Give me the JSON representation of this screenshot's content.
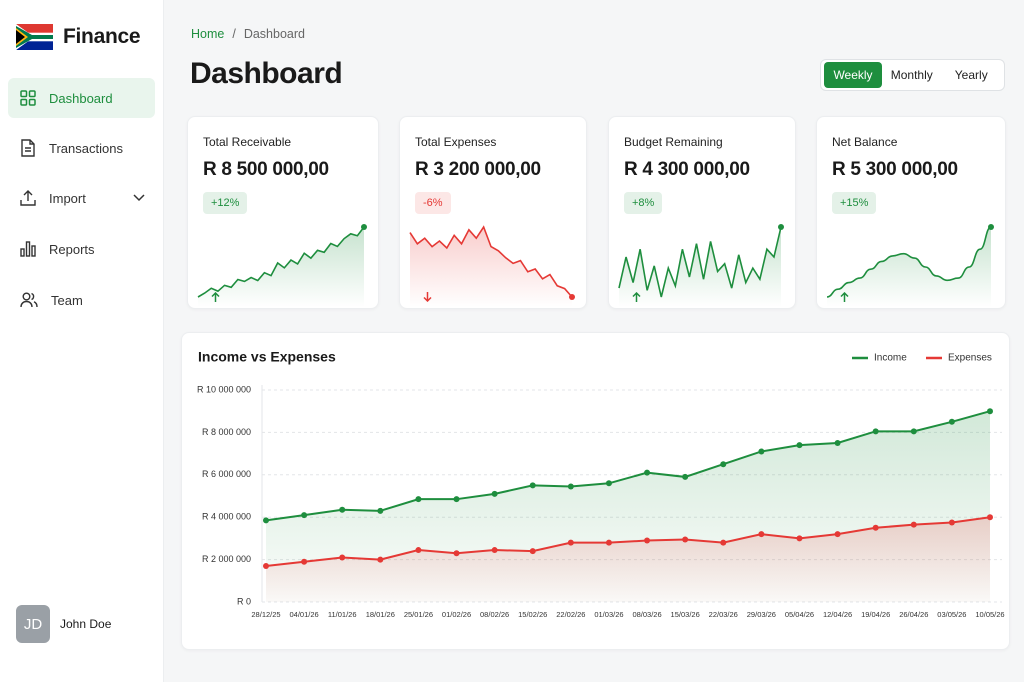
{
  "sidebar": {
    "brand": "Finance",
    "nav": [
      "Dashboard",
      "Transactions",
      "Import",
      "Reports",
      "Team"
    ],
    "user": {
      "initials": "JD",
      "name": "John Doe"
    }
  },
  "breadcrumb": {
    "items": [
      "Home",
      "Dashboard"
    ],
    "separator": "/"
  },
  "header": {
    "title": "Dashboard",
    "periods": [
      "Weekly",
      "Monthly",
      "Yearly"
    ],
    "active_period": 0
  },
  "cards": [
    {
      "title": "Total Receivable",
      "value": "R 8 500 000,00",
      "change": "+12%",
      "color": "#1e8e3e",
      "sparkline": [
        10,
        14,
        19,
        16,
        22,
        20,
        28,
        26,
        30,
        27,
        35,
        32,
        45,
        40,
        48,
        44,
        55,
        50,
        58,
        56,
        65,
        62,
        70,
        75,
        73,
        82
      ]
    },
    {
      "title": "Total Expenses",
      "value": "R 3 200 000,00",
      "change": "-6%",
      "color": "#e53935",
      "sparkline": [
        68,
        60,
        64,
        58,
        62,
        57,
        66,
        60,
        70,
        64,
        72,
        58,
        55,
        50,
        46,
        48,
        40,
        42,
        35,
        38,
        30,
        28,
        22
      ]
    },
    {
      "title": "Budget Remaining",
      "value": "R 4 300 000,00",
      "change": "+8%",
      "color": "#1e8e3e",
      "sparkline": [
        20,
        48,
        25,
        55,
        18,
        40,
        12,
        38,
        22,
        55,
        30,
        60,
        28,
        62,
        35,
        42,
        20,
        50,
        25,
        38,
        28,
        55,
        48,
        75
      ]
    },
    {
      "title": "Net Balance",
      "value": "R 5 300 000,00",
      "change": "+15%",
      "color": "#1e8e3e",
      "sparkline": [
        15,
        22,
        28,
        32,
        40,
        47,
        52,
        54,
        50,
        42,
        34,
        30,
        32,
        42,
        58,
        78
      ]
    }
  ],
  "chart_data": {
    "type": "line",
    "title": "Income vs Expenses",
    "x": [
      "28/12/25",
      "04/01/26",
      "11/01/26",
      "18/01/26",
      "25/01/26",
      "01/02/26",
      "08/02/26",
      "15/02/26",
      "22/02/26",
      "01/03/26",
      "08/03/26",
      "15/03/26",
      "22/03/26",
      "29/03/26",
      "05/04/26",
      "12/04/26",
      "19/04/26",
      "26/04/26",
      "03/05/26",
      "10/05/26"
    ],
    "series": [
      {
        "name": "Income",
        "color": "#1e8e3e",
        "values": [
          3850000,
          4100000,
          4350000,
          4300000,
          4850000,
          4850000,
          5100000,
          5500000,
          5450000,
          5600000,
          6100000,
          5900000,
          6500000,
          7100000,
          7400000,
          7500000,
          8050000,
          8050000,
          8500000,
          9000000
        ]
      },
      {
        "name": "Expenses",
        "color": "#e53935",
        "values": [
          1700000,
          1900000,
          2100000,
          2000000,
          2450000,
          2300000,
          2450000,
          2400000,
          2800000,
          2800000,
          2900000,
          2950000,
          2800000,
          3200000,
          3000000,
          3200000,
          3500000,
          3650000,
          3750000,
          4000000
        ]
      }
    ],
    "ylim": [
      0,
      10000000
    ],
    "yticks": [
      {
        "value": 0,
        "label": "R 0"
      },
      {
        "value": 2000000,
        "label": "R 2 000 000"
      },
      {
        "value": 4000000,
        "label": "R 4 000 000"
      },
      {
        "value": 6000000,
        "label": "R 6 000 000"
      },
      {
        "value": 8000000,
        "label": "R 8 000 000"
      },
      {
        "value": 10000000,
        "label": "R 10 000 000"
      }
    ],
    "grid": true,
    "legend": "top-right",
    "area": true
  }
}
